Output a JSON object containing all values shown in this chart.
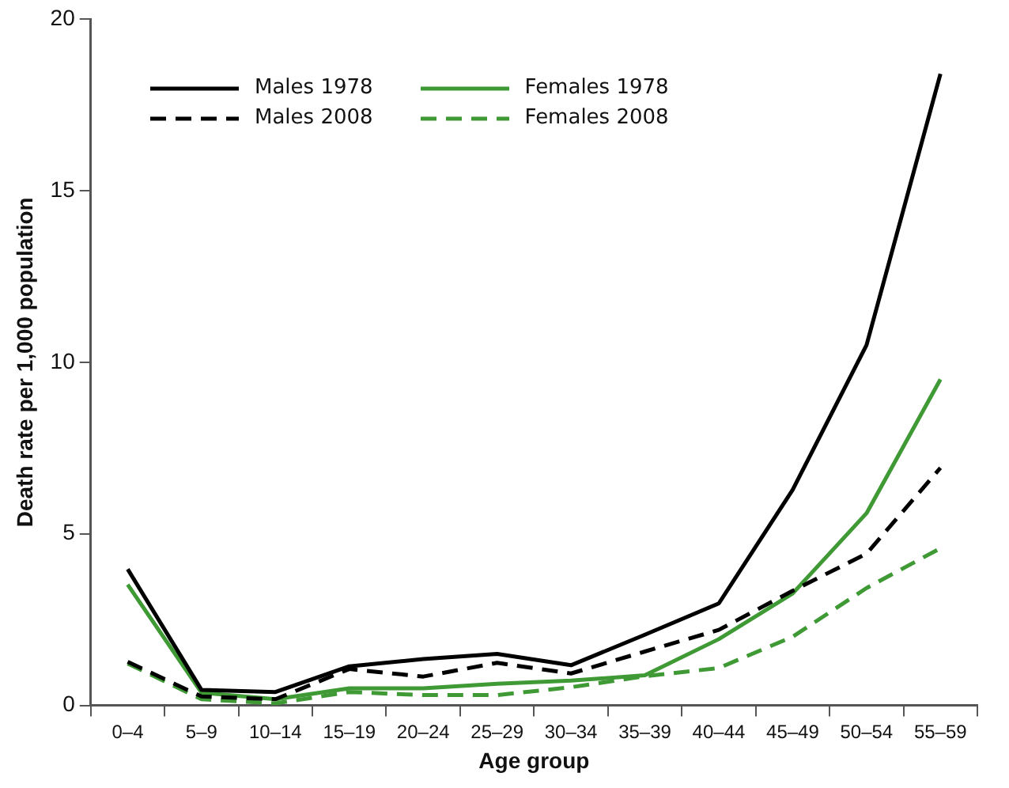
{
  "chart_data": {
    "type": "line",
    "xlabel": "Age group",
    "ylabel": "Death rate per 1,000 population",
    "categories": [
      "0–4",
      "5–9",
      "10–14",
      "15–19",
      "20–24",
      "25–29",
      "30–34",
      "35–39",
      "40–44",
      "45–49",
      "50–54",
      "55–59"
    ],
    "series": [
      {
        "name": "Males 1978",
        "color": "#000000",
        "line_style": "solid",
        "values": [
          3.97,
          0.45,
          0.39,
          1.14,
          1.35,
          1.5,
          1.17,
          2.06,
          2.97,
          6.28,
          10.5,
          18.4
        ]
      },
      {
        "name": "Males 2008",
        "color": "#000000",
        "line_style": "dashed",
        "values": [
          1.27,
          0.26,
          0.18,
          1.06,
          0.84,
          1.24,
          0.93,
          1.57,
          2.2,
          3.34,
          4.42,
          6.92
        ]
      },
      {
        "name": "Females 1978",
        "color": "#3f9a35",
        "line_style": "solid",
        "values": [
          3.52,
          0.37,
          0.18,
          0.5,
          0.5,
          0.63,
          0.72,
          0.88,
          1.93,
          3.26,
          5.6,
          9.5
        ]
      },
      {
        "name": "Females 2008",
        "color": "#3f9a35",
        "line_style": "dashed",
        "values": [
          1.22,
          0.18,
          0.06,
          0.39,
          0.3,
          0.3,
          0.53,
          0.85,
          1.09,
          2.0,
          3.42,
          4.58
        ]
      }
    ],
    "ylim": [
      0,
      20
    ],
    "yticks": [
      0,
      5,
      10,
      15,
      20
    ],
    "grid": false,
    "legend": "top left",
    "marker": "none"
  }
}
